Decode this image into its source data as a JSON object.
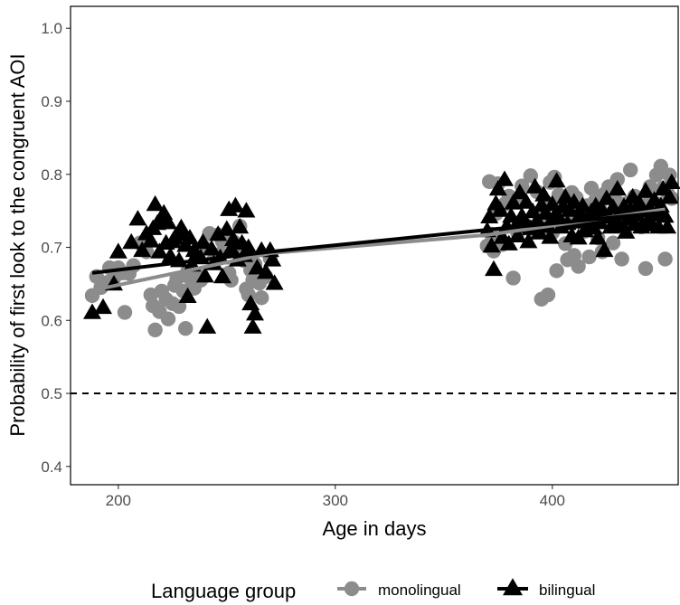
{
  "chart_data": {
    "type": "scatter",
    "xlabel": "Age in days",
    "ylabel": "Probability of first look to the congruent AOI",
    "xlim": [
      178,
      458
    ],
    "ylim": [
      0.375,
      1.03
    ],
    "x_ticks": [
      200,
      300,
      400
    ],
    "y_ticks": [
      0.4,
      0.5,
      0.6,
      0.7,
      0.8,
      0.9,
      1.0
    ],
    "x_tick_labels": [
      "200",
      "300",
      "400"
    ],
    "y_tick_labels": [
      "0.4",
      "0.5",
      "0.6",
      "0.7",
      "0.8",
      "0.9",
      "1.0"
    ],
    "grid": false,
    "reference_line": {
      "y": 0.5,
      "style": "dashed"
    },
    "legend": {
      "position": "bottom",
      "title": "Language group",
      "entries": [
        "monolingual",
        "bilingual"
      ]
    },
    "series": [
      {
        "name": "monolingual",
        "marker": "circle",
        "color": "#8c8c8c",
        "trend": {
          "x": [
            188,
            270
          ],
          "y": [
            0.641,
            0.692
          ]
        },
        "trend2": {
          "x": [
            370,
            452
          ],
          "y": [
            0.717,
            0.752
          ]
        },
        "points": [
          [
            188,
            0.634
          ],
          [
            190,
            0.66
          ],
          [
            192,
            0.645
          ],
          [
            195,
            0.652
          ],
          [
            196,
            0.672
          ],
          [
            198,
            0.658
          ],
          [
            200,
            0.672
          ],
          [
            202,
            0.665
          ],
          [
            203,
            0.611
          ],
          [
            205,
            0.664
          ],
          [
            207,
            0.675
          ],
          [
            210,
            0.706
          ],
          [
            213,
            0.694
          ],
          [
            215,
            0.635
          ],
          [
            216,
            0.62
          ],
          [
            217,
            0.587
          ],
          [
            219,
            0.612
          ],
          [
            220,
            0.64
          ],
          [
            222,
            0.629
          ],
          [
            223,
            0.602
          ],
          [
            225,
            0.623
          ],
          [
            226,
            0.648
          ],
          [
            227,
            0.657
          ],
          [
            228,
            0.619
          ],
          [
            229,
            0.708
          ],
          [
            230,
            0.64
          ],
          [
            231,
            0.589
          ],
          [
            232,
            0.667
          ],
          [
            233,
            0.658
          ],
          [
            235,
            0.644
          ],
          [
            236,
            0.664
          ],
          [
            238,
            0.655
          ],
          [
            240,
            0.699
          ],
          [
            242,
            0.719
          ],
          [
            244,
            0.683
          ],
          [
            246,
            0.717
          ],
          [
            247,
            0.691
          ],
          [
            248,
            0.708
          ],
          [
            250,
            0.716
          ],
          [
            251,
            0.665
          ],
          [
            252,
            0.655
          ],
          [
            253,
            0.708
          ],
          [
            255,
            0.694
          ],
          [
            256,
            0.729
          ],
          [
            257,
            0.701
          ],
          [
            258,
            0.682
          ],
          [
            259,
            0.643
          ],
          [
            260,
            0.635
          ],
          [
            261,
            0.669
          ],
          [
            262,
            0.655
          ],
          [
            263,
            0.677
          ],
          [
            265,
            0.651
          ],
          [
            266,
            0.631
          ],
          [
            268,
            0.66
          ],
          [
            270,
            0.685
          ],
          [
            370,
            0.702
          ],
          [
            371,
            0.79
          ],
          [
            372,
            0.718
          ],
          [
            373,
            0.695
          ],
          [
            374,
            0.746
          ],
          [
            375,
            0.787
          ],
          [
            377,
            0.704
          ],
          [
            378,
            0.759
          ],
          [
            380,
            0.77
          ],
          [
            382,
            0.658
          ],
          [
            384,
            0.72
          ],
          [
            385,
            0.769
          ],
          [
            386,
            0.784
          ],
          [
            388,
            0.73
          ],
          [
            390,
            0.798
          ],
          [
            391,
            0.721
          ],
          [
            393,
            0.776
          ],
          [
            394,
            0.747
          ],
          [
            395,
            0.629
          ],
          [
            396,
            0.735
          ],
          [
            397,
            0.762
          ],
          [
            398,
            0.635
          ],
          [
            399,
            0.789
          ],
          [
            400,
            0.72
          ],
          [
            401,
            0.796
          ],
          [
            402,
            0.668
          ],
          [
            403,
            0.772
          ],
          [
            404,
            0.731
          ],
          [
            405,
            0.759
          ],
          [
            406,
            0.705
          ],
          [
            407,
            0.683
          ],
          [
            408,
            0.738
          ],
          [
            409,
            0.775
          ],
          [
            410,
            0.689
          ],
          [
            411,
            0.768
          ],
          [
            412,
            0.674
          ],
          [
            413,
            0.748
          ],
          [
            415,
            0.722
          ],
          [
            416,
            0.757
          ],
          [
            417,
            0.687
          ],
          [
            418,
            0.781
          ],
          [
            419,
            0.737
          ],
          [
            420,
            0.765
          ],
          [
            421,
            0.713
          ],
          [
            422,
            0.752
          ],
          [
            423,
            0.694
          ],
          [
            424,
            0.773
          ],
          [
            425,
            0.741
          ],
          [
            426,
            0.783
          ],
          [
            427,
            0.745
          ],
          [
            428,
            0.706
          ],
          [
            429,
            0.765
          ],
          [
            430,
            0.793
          ],
          [
            431,
            0.745
          ],
          [
            432,
            0.684
          ],
          [
            433,
            0.759
          ],
          [
            434,
            0.727
          ],
          [
            435,
            0.761
          ],
          [
            436,
            0.806
          ],
          [
            437,
            0.739
          ],
          [
            438,
            0.77
          ],
          [
            440,
            0.751
          ],
          [
            441,
            0.728
          ],
          [
            442,
            0.759
          ],
          [
            443,
            0.671
          ],
          [
            444,
            0.77
          ],
          [
            445,
            0.783
          ],
          [
            446,
            0.755
          ],
          [
            447,
            0.741
          ],
          [
            448,
            0.799
          ],
          [
            449,
            0.759
          ],
          [
            450,
            0.811
          ],
          [
            451,
            0.781
          ],
          [
            452,
            0.684
          ],
          [
            453,
            0.775
          ],
          [
            454,
            0.799
          ],
          [
            455,
            0.767
          ]
        ]
      },
      {
        "name": "bilingual",
        "marker": "triangle",
        "color": "#000000",
        "trend": {
          "x": [
            188,
            270
          ],
          "y": [
            0.665,
            0.694
          ]
        },
        "trend2": {
          "x": [
            370,
            452
          ],
          "y": [
            0.724,
            0.748
          ]
        },
        "points": [
          [
            188,
            0.61
          ],
          [
            193,
            0.617
          ],
          [
            198,
            0.649
          ],
          [
            200,
            0.693
          ],
          [
            206,
            0.706
          ],
          [
            209,
            0.738
          ],
          [
            211,
            0.695
          ],
          [
            213,
            0.718
          ],
          [
            215,
            0.708
          ],
          [
            216,
            0.725
          ],
          [
            217,
            0.758
          ],
          [
            218,
            0.732
          ],
          [
            219,
            0.693
          ],
          [
            220,
            0.736
          ],
          [
            221,
            0.746
          ],
          [
            222,
            0.705
          ],
          [
            223,
            0.733
          ],
          [
            224,
            0.687
          ],
          [
            225,
            0.707
          ],
          [
            226,
            0.712
          ],
          [
            228,
            0.681
          ],
          [
            229,
            0.726
          ],
          [
            230,
            0.717
          ],
          [
            231,
            0.702
          ],
          [
            232,
            0.632
          ],
          [
            233,
            0.712
          ],
          [
            234,
            0.675
          ],
          [
            235,
            0.695
          ],
          [
            236,
            0.689
          ],
          [
            238,
            0.685
          ],
          [
            239,
            0.706
          ],
          [
            240,
            0.66
          ],
          [
            241,
            0.59
          ],
          [
            243,
            0.697
          ],
          [
            244,
            0.677
          ],
          [
            246,
            0.717
          ],
          [
            247,
            0.685
          ],
          [
            248,
            0.659
          ],
          [
            250,
            0.724
          ],
          [
            251,
            0.751
          ],
          [
            252,
            0.697
          ],
          [
            253,
            0.71
          ],
          [
            254,
            0.756
          ],
          [
            255,
            0.682
          ],
          [
            256,
            0.727
          ],
          [
            257,
            0.705
          ],
          [
            258,
            0.688
          ],
          [
            259,
            0.749
          ],
          [
            260,
            0.699
          ],
          [
            261,
            0.622
          ],
          [
            262,
            0.59
          ],
          [
            263,
            0.608
          ],
          [
            264,
            0.671
          ],
          [
            266,
            0.695
          ],
          [
            268,
            0.665
          ],
          [
            270,
            0.695
          ],
          [
            271,
            0.682
          ],
          [
            272,
            0.65
          ],
          [
            370,
            0.722
          ],
          [
            371,
            0.741
          ],
          [
            372,
            0.701
          ],
          [
            373,
            0.669
          ],
          [
            374,
            0.759
          ],
          [
            375,
            0.779
          ],
          [
            376,
            0.75
          ],
          [
            377,
            0.713
          ],
          [
            378,
            0.792
          ],
          [
            379,
            0.728
          ],
          [
            380,
            0.704
          ],
          [
            381,
            0.742
          ],
          [
            382,
            0.76
          ],
          [
            383,
            0.728
          ],
          [
            384,
            0.715
          ],
          [
            385,
            0.774
          ],
          [
            386,
            0.742
          ],
          [
            387,
            0.735
          ],
          [
            388,
            0.761
          ],
          [
            389,
            0.707
          ],
          [
            390,
            0.725
          ],
          [
            391,
            0.748
          ],
          [
            392,
            0.782
          ],
          [
            393,
            0.736
          ],
          [
            394,
            0.719
          ],
          [
            395,
            0.757
          ],
          [
            396,
            0.771
          ],
          [
            397,
            0.746
          ],
          [
            398,
            0.728
          ],
          [
            399,
            0.713
          ],
          [
            400,
            0.758
          ],
          [
            401,
            0.742
          ],
          [
            402,
            0.79
          ],
          [
            403,
            0.74
          ],
          [
            404,
            0.727
          ],
          [
            405,
            0.755
          ],
          [
            406,
            0.768
          ],
          [
            407,
            0.732
          ],
          [
            408,
            0.75
          ],
          [
            409,
            0.715
          ],
          [
            410,
            0.761
          ],
          [
            411,
            0.734
          ],
          [
            412,
            0.712
          ],
          [
            413,
            0.745
          ],
          [
            414,
            0.756
          ],
          [
            415,
            0.722
          ],
          [
            416,
            0.735
          ],
          [
            418,
            0.748
          ],
          [
            419,
            0.726
          ],
          [
            420,
            0.756
          ],
          [
            421,
            0.712
          ],
          [
            422,
            0.733
          ],
          [
            423,
            0.75
          ],
          [
            424,
            0.695
          ],
          [
            425,
            0.766
          ],
          [
            426,
            0.741
          ],
          [
            427,
            0.727
          ],
          [
            428,
            0.754
          ],
          [
            429,
            0.736
          ],
          [
            430,
            0.779
          ],
          [
            431,
            0.728
          ],
          [
            432,
            0.745
          ],
          [
            433,
            0.755
          ],
          [
            434,
            0.72
          ],
          [
            435,
            0.738
          ],
          [
            436,
            0.751
          ],
          [
            437,
            0.768
          ],
          [
            438,
            0.731
          ],
          [
            439,
            0.744
          ],
          [
            440,
            0.76
          ],
          [
            441,
            0.727
          ],
          [
            442,
            0.749
          ],
          [
            443,
            0.776
          ],
          [
            444,
            0.735
          ],
          [
            445,
            0.752
          ],
          [
            446,
            0.73
          ],
          [
            447,
            0.764
          ],
          [
            448,
            0.744
          ],
          [
            449,
            0.727
          ],
          [
            450,
            0.756
          ],
          [
            451,
            0.779
          ],
          [
            452,
            0.742
          ],
          [
            453,
            0.727
          ],
          [
            454,
            0.768
          ],
          [
            455,
            0.788
          ]
        ]
      }
    ]
  }
}
